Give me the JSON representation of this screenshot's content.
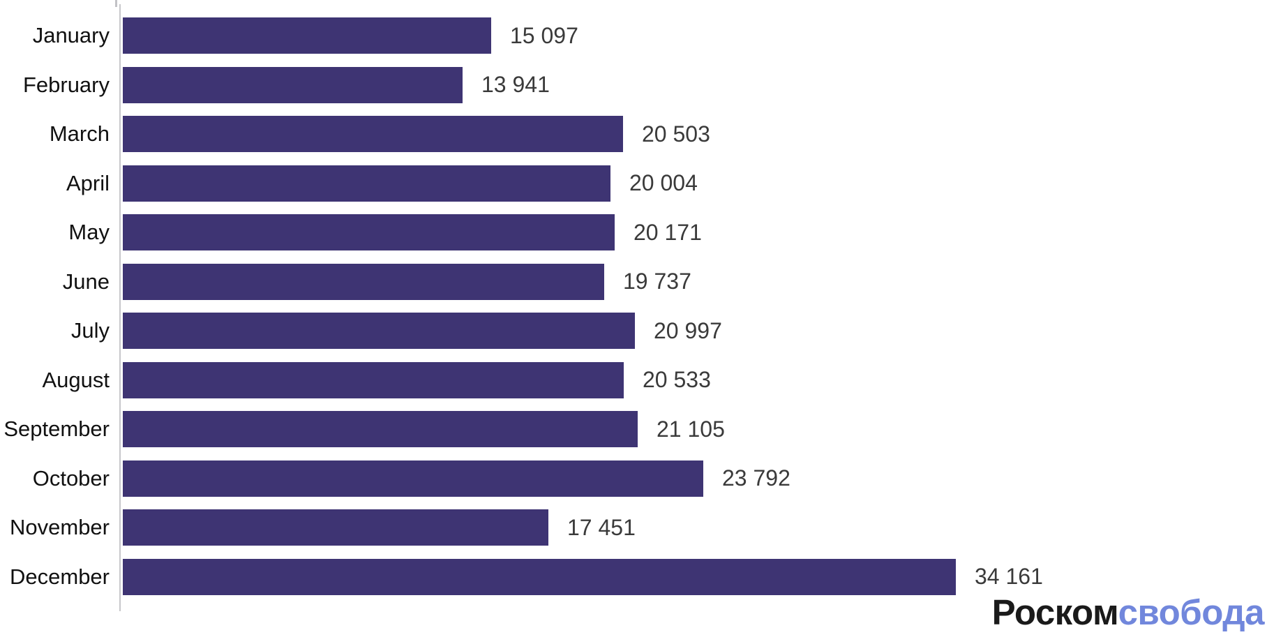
{
  "chart_data": {
    "type": "bar",
    "orientation": "horizontal",
    "title": "",
    "xlabel": "",
    "ylabel": "",
    "categories": [
      "January",
      "February",
      "March",
      "April",
      "May",
      "June",
      "July",
      "August",
      "September",
      "October",
      "November",
      "December"
    ],
    "values": [
      15097,
      13941,
      20503,
      20004,
      20171,
      19737,
      20997,
      20533,
      21105,
      23792,
      17451,
      34161
    ],
    "value_labels": [
      "15 097",
      "13 941",
      "20 503",
      "20 004",
      "20 171",
      "19 737",
      "20 997",
      "20 533",
      "21 105",
      "23 792",
      "17 451",
      "34 161"
    ],
    "xlim": [
      0,
      34161
    ],
    "grid": false,
    "legend_position": "none",
    "bar_color": "#3E3473",
    "axis_color": "#C7C7CA",
    "category_label_color": "#111111",
    "value_label_color": "#3A3A3A"
  },
  "branding": {
    "logo_text_black": "Роском",
    "logo_text_blue": "свобода",
    "logo_black_color": "#1A1A1A",
    "logo_blue_color": "#7187DC"
  }
}
